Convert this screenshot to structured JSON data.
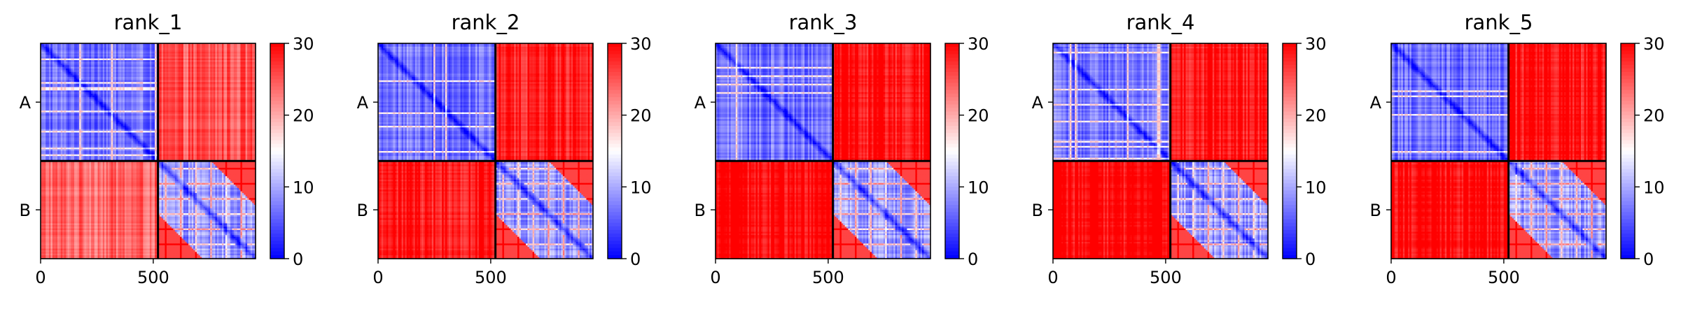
{
  "chart_data": [
    {
      "type": "heatmap",
      "title": "rank_1",
      "xticks": [
        "0",
        "500"
      ],
      "xtick_values": [
        0,
        500
      ],
      "yticks": [
        "A",
        "B"
      ],
      "segments": [
        {
          "name": "A",
          "length": 521
        },
        {
          "name": "B",
          "length": 433
        }
      ],
      "colorbar": {
        "min": 0,
        "max": 30,
        "ticks": [
          "0",
          "10",
          "20",
          "30"
        ],
        "cmap": "bwr"
      },
      "block_means": {
        "AA": 7,
        "BB": 9,
        "AB": 25,
        "BA": 24
      }
    },
    {
      "type": "heatmap",
      "title": "rank_2",
      "xticks": [
        "0",
        "500"
      ],
      "xtick_values": [
        0,
        500
      ],
      "yticks": [
        "A",
        "B"
      ],
      "segments": [
        {
          "name": "A",
          "length": 521
        },
        {
          "name": "B",
          "length": 433
        }
      ],
      "colorbar": {
        "min": 0,
        "max": 30,
        "ticks": [
          "0",
          "10",
          "20",
          "30"
        ],
        "cmap": "bwr"
      },
      "block_means": {
        "AA": 7,
        "BB": 9,
        "AB": 28,
        "BA": 29
      }
    },
    {
      "type": "heatmap",
      "title": "rank_3",
      "xticks": [
        "0",
        "500"
      ],
      "xtick_values": [
        0,
        500
      ],
      "yticks": [
        "A",
        "B"
      ],
      "segments": [
        {
          "name": "A",
          "length": 521
        },
        {
          "name": "B",
          "length": 433
        }
      ],
      "colorbar": {
        "min": 0,
        "max": 30,
        "ticks": [
          "0",
          "10",
          "20",
          "30"
        ],
        "cmap": "bwr"
      },
      "block_means": {
        "AA": 7,
        "BB": 9,
        "AB": 29,
        "BA": 30
      }
    },
    {
      "type": "heatmap",
      "title": "rank_4",
      "xticks": [
        "0",
        "500"
      ],
      "xtick_values": [
        0,
        500
      ],
      "yticks": [
        "A",
        "B"
      ],
      "segments": [
        {
          "name": "A",
          "length": 521
        },
        {
          "name": "B",
          "length": 433
        }
      ],
      "colorbar": {
        "min": 0,
        "max": 30,
        "ticks": [
          "0",
          "10",
          "20",
          "30"
        ],
        "cmap": "bwr"
      },
      "block_means": {
        "AA": 7,
        "BB": 9,
        "AB": 29,
        "BA": 30
      }
    },
    {
      "type": "heatmap",
      "title": "rank_5",
      "xticks": [
        "0",
        "500"
      ],
      "xtick_values": [
        0,
        500
      ],
      "yticks": [
        "A",
        "B"
      ],
      "segments": [
        {
          "name": "A",
          "length": 521
        },
        {
          "name": "B",
          "length": 433
        }
      ],
      "colorbar": {
        "min": 0,
        "max": 30,
        "ticks": [
          "0",
          "10",
          "20",
          "30"
        ],
        "cmap": "bwr"
      },
      "block_means": {
        "AA": 7,
        "BB": 9,
        "AB": 29,
        "BA": 30
      }
    }
  ]
}
